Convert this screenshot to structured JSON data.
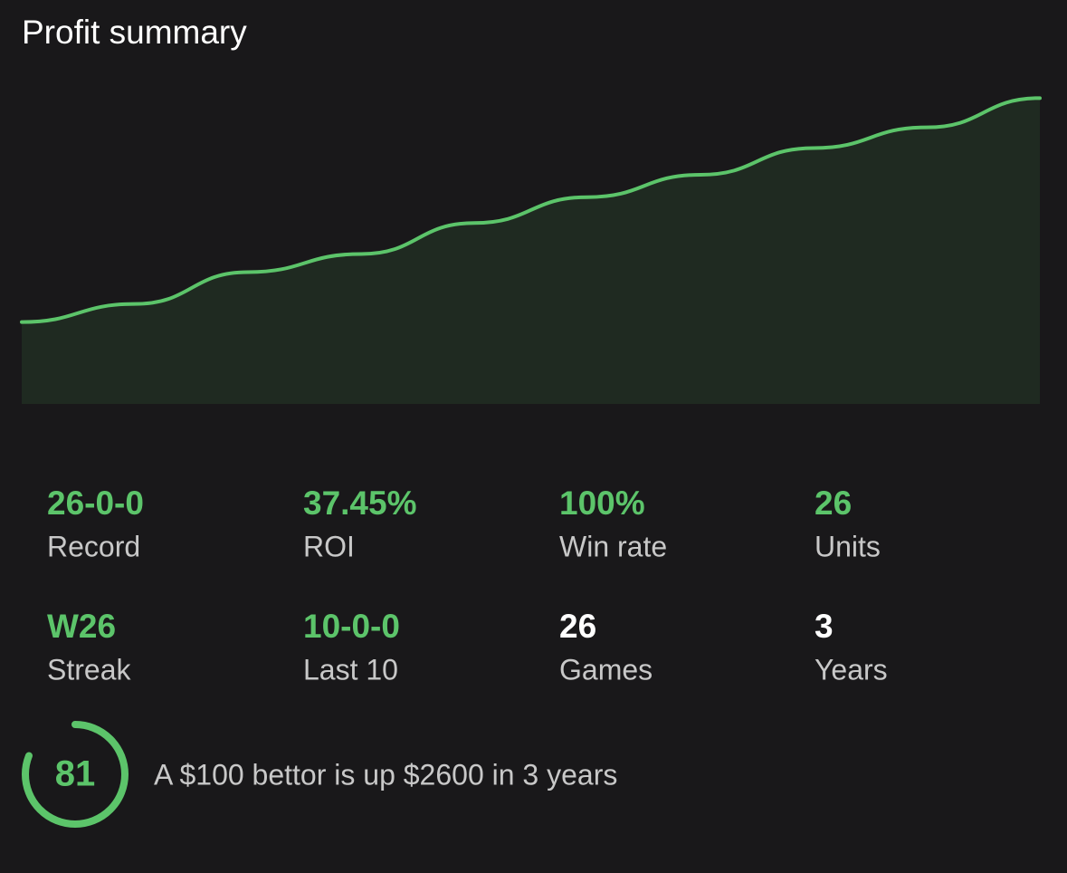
{
  "header": {
    "title": "Profit summary"
  },
  "chart_data": {
    "type": "area",
    "values": [
      0,
      2.1,
      5.8,
      7.9,
      11.5,
      14.5,
      17.1,
      20.2,
      22.6,
      26
    ],
    "ylim": [
      -9.5,
      27.4
    ],
    "color": "#5cc46a",
    "fill": "#1f2a21"
  },
  "stats": [
    {
      "value": "26-0-0",
      "label": "Record",
      "highlight": true
    },
    {
      "value": "37.45%",
      "label": "ROI",
      "highlight": true
    },
    {
      "value": "100%",
      "label": "Win rate",
      "highlight": true
    },
    {
      "value": "26",
      "label": "Units",
      "highlight": true
    },
    {
      "value": "W26",
      "label": "Streak",
      "highlight": true
    },
    {
      "value": "10-0-0",
      "label": "Last 10",
      "highlight": true
    },
    {
      "value": "26",
      "label": "Games",
      "highlight": false
    },
    {
      "value": "3",
      "label": "Years",
      "highlight": false
    }
  ],
  "score": {
    "value": 81,
    "ring_max": 100
  },
  "summary": "A $100 bettor is up $2600 in 3 years"
}
